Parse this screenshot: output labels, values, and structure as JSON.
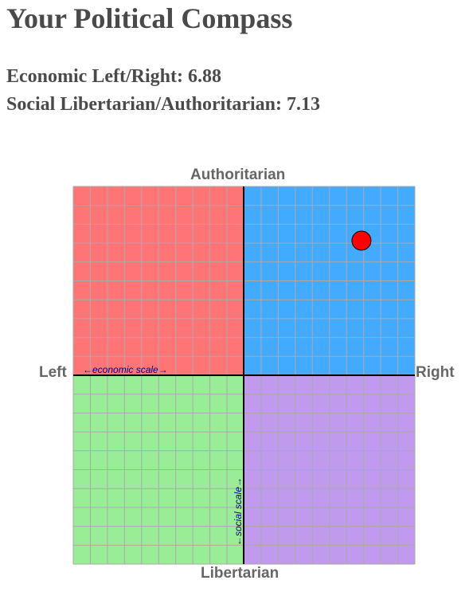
{
  "header": {
    "title": "Your Political Compass"
  },
  "scores": {
    "economic_label": "Economic Left/Right:",
    "economic_value": "6.88",
    "social_label": "Social Libertarian/Authoritarian:",
    "social_value": "7.13"
  },
  "compass": {
    "label_top": "Authoritarian",
    "label_bottom": "Libertarian",
    "label_left": "Left",
    "label_right": "Right",
    "economic_scale_text": "←economic scale→",
    "social_scale_text": "←social scale→",
    "range": [
      -10,
      10
    ],
    "point": {
      "economic": 6.88,
      "social": 7.13
    },
    "colors": {
      "authoritarian_left": "#ff7575",
      "authoritarian_right": "#42aaff",
      "libertarian_left": "#9aed97",
      "libertarian_right": "#c09aec",
      "grid": "#aaaaaa",
      "axis": "#000000",
      "point": "#ff0000",
      "scale_text": "#000077"
    }
  }
}
